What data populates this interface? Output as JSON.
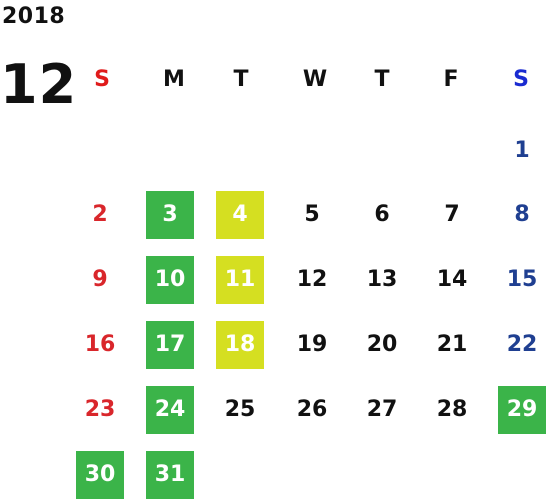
{
  "year": "2018",
  "month": "12",
  "colors": {
    "sunday_text": "#d9262b",
    "saturday_text": "#1f3f91",
    "weekday_header_sunday": "#e01b1b",
    "weekday_header_saturday": "#1a2bd1",
    "green_highlight": "#3bb449",
    "lime_highlight": "#d5df21"
  },
  "weekdays": [
    "S",
    "M",
    "T",
    "W",
    "T",
    "F",
    "S"
  ],
  "weeks": [
    [
      null,
      null,
      null,
      null,
      null,
      null,
      {
        "label": "1",
        "hl": null
      }
    ],
    [
      {
        "label": "2",
        "hl": null
      },
      {
        "label": "3",
        "hl": "green"
      },
      {
        "label": "4",
        "hl": "lime"
      },
      {
        "label": "5",
        "hl": null
      },
      {
        "label": "6",
        "hl": null
      },
      {
        "label": "7",
        "hl": null
      },
      {
        "label": "8",
        "hl": null
      }
    ],
    [
      {
        "label": "9",
        "hl": null
      },
      {
        "label": "10",
        "hl": "green"
      },
      {
        "label": "11",
        "hl": "lime"
      },
      {
        "label": "12",
        "hl": null
      },
      {
        "label": "13",
        "hl": null
      },
      {
        "label": "14",
        "hl": null
      },
      {
        "label": "15",
        "hl": null
      }
    ],
    [
      {
        "label": "16",
        "hl": null
      },
      {
        "label": "17",
        "hl": "green"
      },
      {
        "label": "18",
        "hl": "lime"
      },
      {
        "label": "19",
        "hl": null
      },
      {
        "label": "20",
        "hl": null
      },
      {
        "label": "21",
        "hl": null
      },
      {
        "label": "22",
        "hl": null
      }
    ],
    [
      {
        "label": "23",
        "hl": null
      },
      {
        "label": "24",
        "hl": "green"
      },
      {
        "label": "25",
        "hl": null
      },
      {
        "label": "26",
        "hl": null
      },
      {
        "label": "27",
        "hl": null
      },
      {
        "label": "28",
        "hl": null
      },
      {
        "label": "29",
        "hl": "green"
      }
    ],
    [
      {
        "label": "30",
        "hl": "green"
      },
      {
        "label": "31",
        "hl": "green"
      },
      null,
      null,
      null,
      null,
      null
    ]
  ]
}
